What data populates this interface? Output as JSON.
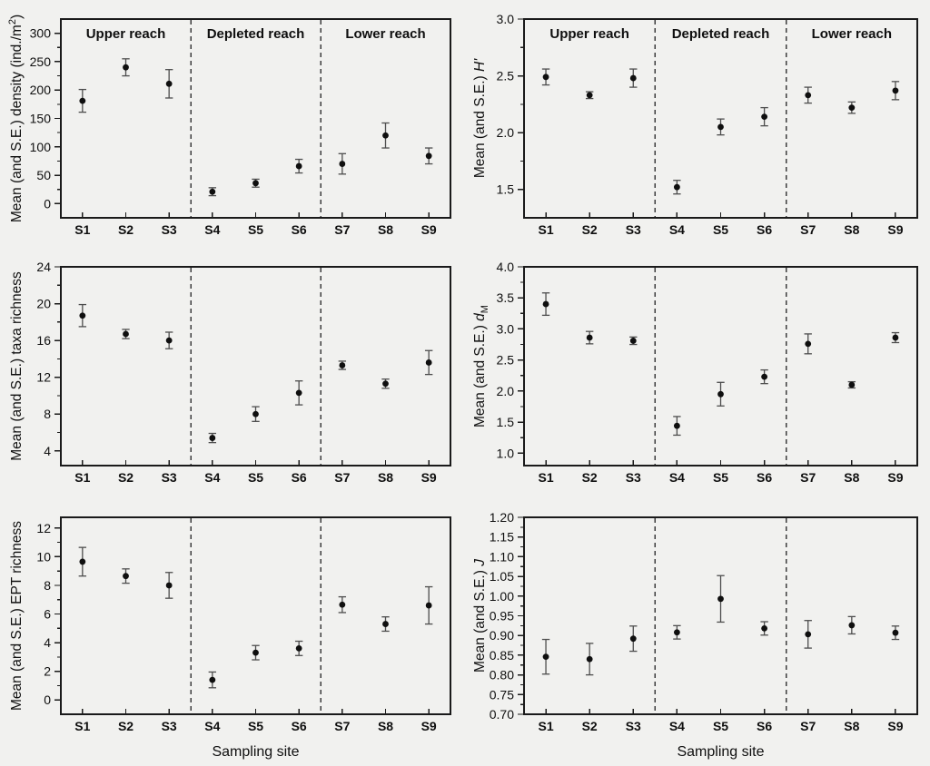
{
  "figure": {
    "xlabel": "Sampling site",
    "site_labels": [
      "S1",
      "S2",
      "S3",
      "S4",
      "S5",
      "S6",
      "S7",
      "S8",
      "S9"
    ],
    "region_labels": [
      "Upper reach",
      "Depleted reach",
      "Lower reach"
    ],
    "colors": {
      "background": "#f1f1ef",
      "axis": "#1a1a1a",
      "text": "#0f0f0f",
      "point": "#0f0f0f",
      "error": "#4d4d4d",
      "divider": "#3c3c3c"
    }
  },
  "chart_data": [
    {
      "type": "scatter",
      "id": "density",
      "slot": "r1l",
      "title": "",
      "ylabel": "Mean (and S.E.) density (ind./m2)",
      "ylabel_parts": [
        {
          "text": "Mean (and S.E.) density (ind./m"
        },
        {
          "text": "2",
          "style": "sup"
        },
        {
          "text": ")"
        }
      ],
      "categories": [
        "S1",
        "S2",
        "S3",
        "S4",
        "S5",
        "S6",
        "S7",
        "S8",
        "S9"
      ],
      "means": [
        181,
        240,
        211,
        21,
        36,
        66,
        70,
        120,
        84
      ],
      "se": [
        20,
        15,
        25,
        7,
        7,
        12,
        18,
        22,
        14
      ],
      "ylim": [
        -25,
        325
      ],
      "ytick_values": [
        0,
        50,
        100,
        150,
        200,
        250,
        300
      ],
      "ytick_labels": [
        "0",
        "50",
        "100",
        "150",
        "200",
        "250",
        "300"
      ],
      "yminor_step": 25,
      "dividers_after": [
        3,
        6
      ],
      "show_region_labels": true,
      "show_xlabel": false,
      "grid": false,
      "legend": "none"
    },
    {
      "type": "scatter",
      "id": "shannon",
      "slot": "r1r",
      "title": "",
      "ylabel": "Mean (and S.E.) H'",
      "ylabel_parts": [
        {
          "text": "Mean (and S.E.) "
        },
        {
          "text": "H'",
          "style": "italic"
        }
      ],
      "categories": [
        "S1",
        "S2",
        "S3",
        "S4",
        "S5",
        "S6",
        "S7",
        "S8",
        "S9"
      ],
      "means": [
        2.49,
        2.33,
        2.48,
        1.52,
        2.05,
        2.14,
        2.33,
        2.22,
        2.37
      ],
      "se": [
        0.07,
        0.03,
        0.08,
        0.06,
        0.07,
        0.08,
        0.07,
        0.05,
        0.08
      ],
      "ylim": [
        1.25,
        3.0
      ],
      "ytick_values": [
        1.5,
        2.0,
        2.5,
        3.0
      ],
      "ytick_labels": [
        "1.5",
        "2.0",
        "2.5",
        "3.0"
      ],
      "yminor_step": 0.25,
      "dividers_after": [
        3,
        6
      ],
      "show_region_labels": true,
      "show_xlabel": false,
      "grid": false,
      "legend": "none"
    },
    {
      "type": "scatter",
      "id": "taxa-richness",
      "slot": "r2l",
      "title": "",
      "ylabel": "Mean (and S.E.) taxa richness",
      "ylabel_parts": [
        {
          "text": "Mean (and S.E.) taxa richness"
        }
      ],
      "categories": [
        "S1",
        "S2",
        "S3",
        "S4",
        "S5",
        "S6",
        "S7",
        "S8",
        "S9"
      ],
      "means": [
        18.7,
        16.7,
        16.0,
        5.4,
        8.0,
        10.3,
        13.3,
        11.3,
        13.6
      ],
      "se": [
        1.2,
        0.5,
        0.9,
        0.5,
        0.8,
        1.3,
        0.45,
        0.5,
        1.3
      ],
      "ylim": [
        2.4,
        24
      ],
      "ytick_values": [
        4,
        8,
        12,
        16,
        20,
        24
      ],
      "ytick_labels": [
        "4",
        "8",
        "12",
        "16",
        "20",
        "24"
      ],
      "yminor_step": 2,
      "dividers_after": [
        3,
        6
      ],
      "show_region_labels": false,
      "show_xlabel": false,
      "grid": false,
      "legend": "none"
    },
    {
      "type": "scatter",
      "id": "margalef",
      "slot": "r2r",
      "title": "",
      "ylabel": "Mean (and S.E.) dM",
      "ylabel_parts": [
        {
          "text": "Mean (and S.E.) "
        },
        {
          "text": "d",
          "style": "italic"
        },
        {
          "text": "M",
          "style": "sub"
        }
      ],
      "categories": [
        "S1",
        "S2",
        "S3",
        "S4",
        "S5",
        "S6",
        "S7",
        "S8",
        "S9"
      ],
      "means": [
        3.4,
        2.86,
        2.81,
        1.44,
        1.95,
        2.23,
        2.76,
        2.1,
        2.86
      ],
      "se": [
        0.18,
        0.1,
        0.06,
        0.15,
        0.19,
        0.11,
        0.16,
        0.05,
        0.08
      ],
      "ylim": [
        0.8,
        4.0
      ],
      "ytick_values": [
        1.0,
        1.5,
        2.0,
        2.5,
        3.0,
        3.5,
        4.0
      ],
      "ytick_labels": [
        "1.0",
        "1.5",
        "2.0",
        "2.5",
        "3.0",
        "3.5",
        "4.0"
      ],
      "yminor_step": 0.25,
      "dividers_after": [
        3,
        6
      ],
      "show_region_labels": false,
      "show_xlabel": false,
      "grid": false,
      "legend": "none"
    },
    {
      "type": "scatter",
      "id": "ept-richness",
      "slot": "r3l",
      "title": "",
      "ylabel": "Mean (and S.E.) EPT richness",
      "ylabel_parts": [
        {
          "text": "Mean (and S.E.) EPT richness"
        }
      ],
      "categories": [
        "S1",
        "S2",
        "S3",
        "S4",
        "S5",
        "S6",
        "S7",
        "S8",
        "S9"
      ],
      "means": [
        9.65,
        8.65,
        8.0,
        1.4,
        3.3,
        3.6,
        6.65,
        5.3,
        6.6
      ],
      "se": [
        1.0,
        0.5,
        0.9,
        0.55,
        0.5,
        0.5,
        0.55,
        0.5,
        1.3
      ],
      "ylim": [
        -1,
        12.75
      ],
      "ytick_values": [
        0,
        2,
        4,
        6,
        8,
        10,
        12
      ],
      "ytick_labels": [
        "0",
        "2",
        "4",
        "6",
        "8",
        "10",
        "12"
      ],
      "yminor_step": 1,
      "dividers_after": [
        3,
        6
      ],
      "show_region_labels": false,
      "show_xlabel": true,
      "grid": false,
      "legend": "none"
    },
    {
      "type": "scatter",
      "id": "pielou",
      "slot": "r3r",
      "title": "",
      "ylabel": "Mean (and S.E.) J",
      "ylabel_parts": [
        {
          "text": "Mean (and S.E.) "
        },
        {
          "text": "J",
          "style": "italic"
        }
      ],
      "categories": [
        "S1",
        "S2",
        "S3",
        "S4",
        "S5",
        "S6",
        "S7",
        "S8",
        "S9"
      ],
      "means": [
        0.846,
        0.84,
        0.892,
        0.908,
        0.993,
        0.918,
        0.903,
        0.926,
        0.907
      ],
      "se": [
        0.044,
        0.04,
        0.032,
        0.017,
        0.059,
        0.017,
        0.035,
        0.022,
        0.017
      ],
      "ylim": [
        0.7,
        1.2
      ],
      "ytick_values": [
        0.7,
        0.75,
        0.8,
        0.85,
        0.9,
        0.95,
        1.0,
        1.05,
        1.1,
        1.15,
        1.2
      ],
      "ytick_labels": [
        "0.70",
        "0.75",
        "0.80",
        "0.85",
        "0.90",
        "0.95",
        "1.00",
        "1.05",
        "1.10",
        "1.15",
        "1.20"
      ],
      "yminor_step": 0.025,
      "dividers_after": [
        3,
        6
      ],
      "show_region_labels": false,
      "show_xlabel": true,
      "grid": false,
      "legend": "none"
    }
  ]
}
